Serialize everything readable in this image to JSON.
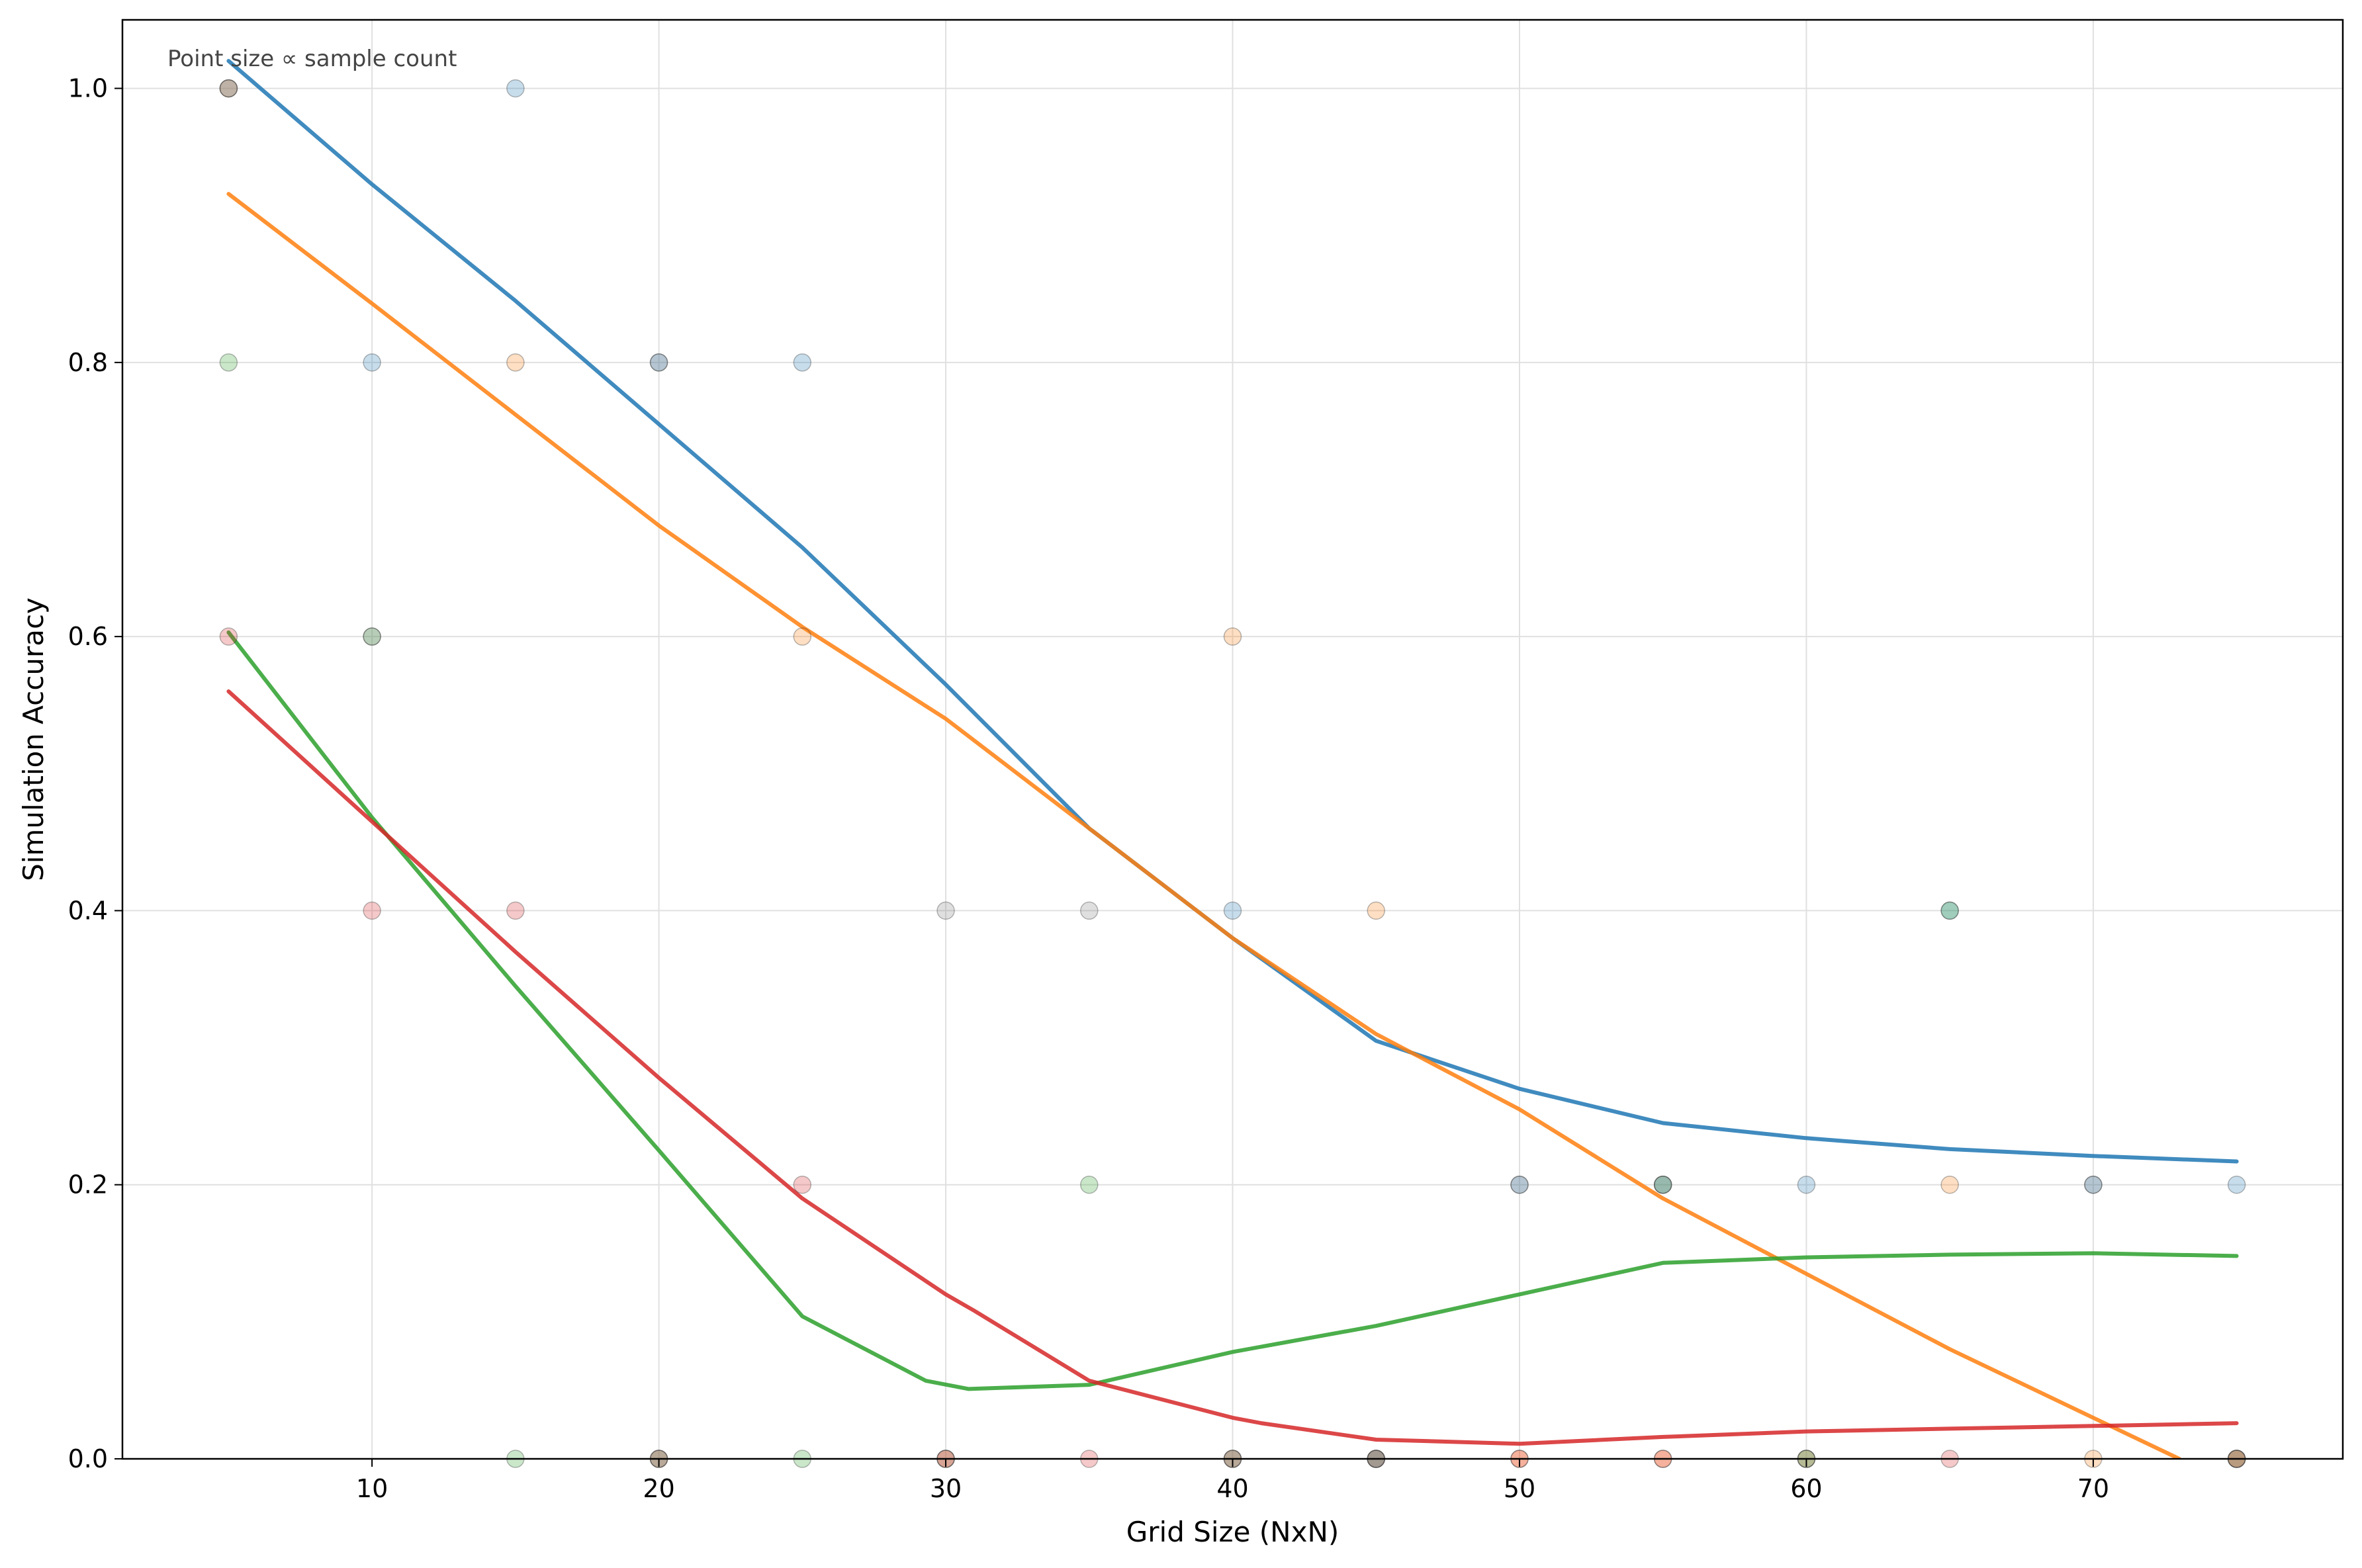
{
  "chart_data": {
    "type": "scatter",
    "title": "",
    "annotation": "Point size ∝ sample count",
    "xlabel": "Grid Size (NxN)",
    "ylabel": "Simulation Accuracy",
    "xlim": [
      1.3,
      78.7
    ],
    "ylim": [
      0.0,
      1.05
    ],
    "xticks": [
      10,
      20,
      30,
      40,
      50,
      60,
      70
    ],
    "yticks": [
      0.0,
      0.2,
      0.4,
      0.6,
      0.8,
      1.0
    ],
    "xtick_labels": [
      "10",
      "20",
      "30",
      "40",
      "50",
      "60",
      "70"
    ],
    "ytick_labels": [
      "0.0",
      "0.2",
      "0.4",
      "0.6",
      "0.8",
      "1.0"
    ],
    "grid": true,
    "series": [
      {
        "color": "#1f77b4",
        "points": [
          {
            "x": 5,
            "y": 1.0
          },
          {
            "x": 10,
            "y": 0.8
          },
          {
            "x": 15,
            "y": 1.0
          },
          {
            "x": 20,
            "y": 0.8
          },
          {
            "x": 25,
            "y": 0.8
          },
          {
            "x": 40,
            "y": 0.4
          },
          {
            "x": 45,
            "y": 0.0
          },
          {
            "x": 50,
            "y": 0.2
          },
          {
            "x": 55,
            "y": 0.2
          },
          {
            "x": 60,
            "y": 0.2
          },
          {
            "x": 65,
            "y": 0.4
          },
          {
            "x": 70,
            "y": 0.2
          },
          {
            "x": 75,
            "y": 0.2
          }
        ],
        "trend": [
          {
            "x": 5,
            "y": 1.02
          },
          {
            "x": 10,
            "y": 0.93
          },
          {
            "x": 15,
            "y": 0.845
          },
          {
            "x": 20,
            "y": 0.755
          },
          {
            "x": 25,
            "y": 0.665
          },
          {
            "x": 30,
            "y": 0.565
          },
          {
            "x": 35,
            "y": 0.46
          },
          {
            "x": 40,
            "y": 0.38
          },
          {
            "x": 41,
            "y": 0.365
          },
          {
            "x": 45,
            "y": 0.305
          },
          {
            "x": 50,
            "y": 0.27
          },
          {
            "x": 55,
            "y": 0.245
          },
          {
            "x": 60,
            "y": 0.234
          },
          {
            "x": 65,
            "y": 0.226
          },
          {
            "x": 70,
            "y": 0.221
          },
          {
            "x": 75,
            "y": 0.217
          }
        ]
      },
      {
        "color": "#ff7f0e",
        "points": [
          {
            "x": 5,
            "y": 1.0
          },
          {
            "x": 15,
            "y": 0.8
          },
          {
            "x": 25,
            "y": 0.6
          },
          {
            "x": 30,
            "y": 0.0
          },
          {
            "x": 40,
            "y": 0.6
          },
          {
            "x": 45,
            "y": 0.4
          },
          {
            "x": 50,
            "y": 0.0
          },
          {
            "x": 55,
            "y": 0.0
          },
          {
            "x": 60,
            "y": 0.0
          },
          {
            "x": 65,
            "y": 0.2
          },
          {
            "x": 70,
            "y": 0.0
          },
          {
            "x": 75,
            "y": 0.0
          }
        ],
        "trend": [
          {
            "x": 5,
            "y": 0.923
          },
          {
            "x": 10,
            "y": 0.843
          },
          {
            "x": 15,
            "y": 0.762
          },
          {
            "x": 20,
            "y": 0.681
          },
          {
            "x": 25,
            "y": 0.607
          },
          {
            "x": 30,
            "y": 0.54
          },
          {
            "x": 35,
            "y": 0.46
          },
          {
            "x": 40,
            "y": 0.38
          },
          {
            "x": 45,
            "y": 0.31
          },
          {
            "x": 50,
            "y": 0.255
          },
          {
            "x": 55,
            "y": 0.19
          },
          {
            "x": 60,
            "y": 0.135
          },
          {
            "x": 65,
            "y": 0.08
          },
          {
            "x": 70,
            "y": 0.03
          },
          {
            "x": 73,
            "y": 0.0
          }
        ]
      },
      {
        "color": "#2ca02c",
        "points": [
          {
            "x": 5,
            "y": 0.8
          },
          {
            "x": 10,
            "y": 0.6
          },
          {
            "x": 15,
            "y": 0.0
          },
          {
            "x": 20,
            "y": 0.0
          },
          {
            "x": 25,
            "y": 0.0
          },
          {
            "x": 35,
            "y": 0.2
          },
          {
            "x": 40,
            "y": 0.0
          },
          {
            "x": 45,
            "y": 0.0
          },
          {
            "x": 55,
            "y": 0.2
          },
          {
            "x": 60,
            "y": 0.0
          },
          {
            "x": 65,
            "y": 0.4
          },
          {
            "x": 75,
            "y": 0.0
          }
        ],
        "trend": [
          {
            "x": 5,
            "y": 0.603
          },
          {
            "x": 10,
            "y": 0.468
          },
          {
            "x": 15,
            "y": 0.345
          },
          {
            "x": 20,
            "y": 0.225
          },
          {
            "x": 25,
            "y": 0.104
          },
          {
            "x": 29.3,
            "y": 0.057
          },
          {
            "x": 30.8,
            "y": 0.051
          },
          {
            "x": 35,
            "y": 0.054
          },
          {
            "x": 40,
            "y": 0.078
          },
          {
            "x": 45,
            "y": 0.097
          },
          {
            "x": 50,
            "y": 0.12
          },
          {
            "x": 55,
            "y": 0.143
          },
          {
            "x": 60,
            "y": 0.147
          },
          {
            "x": 65,
            "y": 0.149
          },
          {
            "x": 70,
            "y": 0.15
          },
          {
            "x": 75,
            "y": 0.148
          }
        ]
      },
      {
        "color": "#d62728",
        "points": [
          {
            "x": 5,
            "y": 0.6
          },
          {
            "x": 10,
            "y": 0.4
          },
          {
            "x": 15,
            "y": 0.4
          },
          {
            "x": 20,
            "y": 0.0
          },
          {
            "x": 25,
            "y": 0.2
          },
          {
            "x": 30,
            "y": 0.0
          },
          {
            "x": 35,
            "y": 0.0
          },
          {
            "x": 40,
            "y": 0.0
          },
          {
            "x": 45,
            "y": 0.0
          },
          {
            "x": 50,
            "y": 0.0
          },
          {
            "x": 55,
            "y": 0.0
          },
          {
            "x": 65,
            "y": 0.0
          },
          {
            "x": 75,
            "y": 0.0
          }
        ],
        "trend": [
          {
            "x": 5,
            "y": 0.56
          },
          {
            "x": 10,
            "y": 0.465
          },
          {
            "x": 15,
            "y": 0.37
          },
          {
            "x": 20,
            "y": 0.278
          },
          {
            "x": 25,
            "y": 0.19
          },
          {
            "x": 30,
            "y": 0.12
          },
          {
            "x": 31,
            "y": 0.108
          },
          {
            "x": 35,
            "y": 0.057
          },
          {
            "x": 40,
            "y": 0.03
          },
          {
            "x": 41,
            "y": 0.026
          },
          {
            "x": 45,
            "y": 0.014
          },
          {
            "x": 50,
            "y": 0.011
          },
          {
            "x": 55,
            "y": 0.016
          },
          {
            "x": 60,
            "y": 0.02
          },
          {
            "x": 65,
            "y": 0.022
          },
          {
            "x": 70,
            "y": 0.024
          },
          {
            "x": 75,
            "y": 0.026
          }
        ]
      },
      {
        "color": "#7f7f7f",
        "points": [
          {
            "x": 5,
            "y": 1.0
          },
          {
            "x": 10,
            "y": 0.6
          },
          {
            "x": 20,
            "y": 0.8
          },
          {
            "x": 20,
            "y": 0.0
          },
          {
            "x": 30,
            "y": 0.4
          },
          {
            "x": 30,
            "y": 0.0
          },
          {
            "x": 35,
            "y": 0.4
          },
          {
            "x": 40,
            "y": 0.0
          },
          {
            "x": 45,
            "y": 0.0
          },
          {
            "x": 50,
            "y": 0.2
          },
          {
            "x": 55,
            "y": 0.2
          },
          {
            "x": 60,
            "y": 0.0
          },
          {
            "x": 70,
            "y": 0.2
          },
          {
            "x": 75,
            "y": 0.0
          }
        ],
        "trend": []
      }
    ]
  }
}
